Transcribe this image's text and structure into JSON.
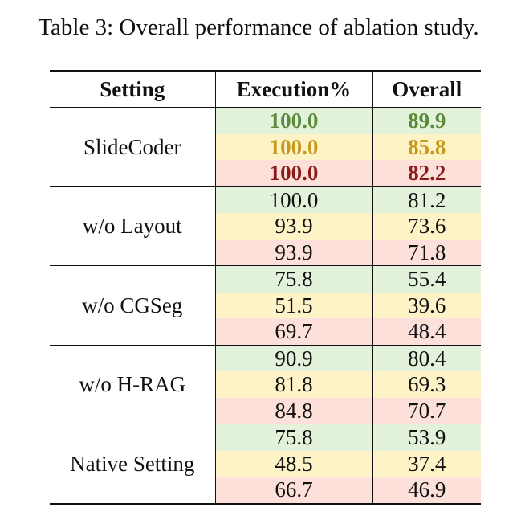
{
  "caption": "Table 3: Overall performance of ablation study.",
  "table": {
    "headers": [
      "Setting",
      "Execution%",
      "Overall"
    ],
    "groups": [
      {
        "setting": "SlideCoder",
        "rows": [
          {
            "execution": "100.0",
            "overall": "89.9"
          },
          {
            "execution": "100.0",
            "overall": "85.8"
          },
          {
            "execution": "100.0",
            "overall": "82.2"
          }
        ]
      },
      {
        "setting": "w/o Layout",
        "rows": [
          {
            "execution": "100.0",
            "overall": "81.2"
          },
          {
            "execution": "93.9",
            "overall": "73.6"
          },
          {
            "execution": "93.9",
            "overall": "71.8"
          }
        ]
      },
      {
        "setting": "w/o CGSeg",
        "rows": [
          {
            "execution": "75.8",
            "overall": "55.4"
          },
          {
            "execution": "51.5",
            "overall": "39.6"
          },
          {
            "execution": "69.7",
            "overall": "48.4"
          }
        ]
      },
      {
        "setting": "w/o H-RAG",
        "rows": [
          {
            "execution": "90.9",
            "overall": "80.4"
          },
          {
            "execution": "81.8",
            "overall": "69.3"
          },
          {
            "execution": "84.8",
            "overall": "70.7"
          }
        ]
      },
      {
        "setting": "Native Setting",
        "rows": [
          {
            "execution": "75.8",
            "overall": "53.9"
          },
          {
            "execution": "48.5",
            "overall": "37.4"
          },
          {
            "execution": "66.7",
            "overall": "46.9"
          }
        ]
      }
    ]
  },
  "colors": {
    "row_backgrounds": [
      "#e3f2da",
      "#fdf3c6",
      "#fce0d9"
    ],
    "highlight_text": [
      "#5a8a3a",
      "#c79a1e",
      "#8b1a1a"
    ]
  }
}
